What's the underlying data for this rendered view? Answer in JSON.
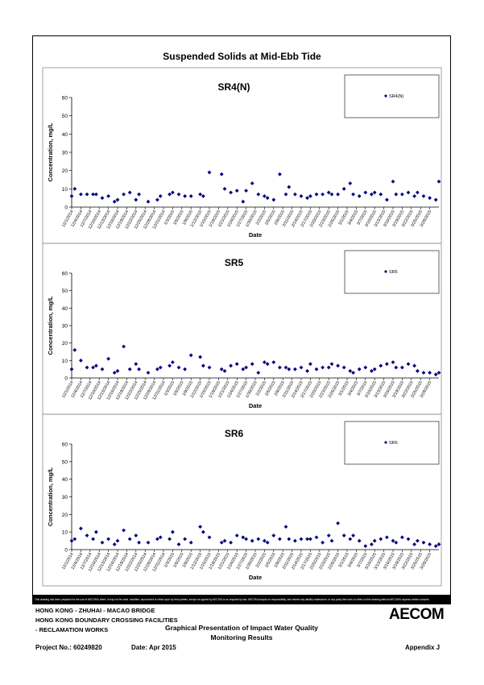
{
  "header": {
    "title": "Suspended Solids at Mid-Ebb Tide"
  },
  "chart_data": [
    {
      "type": "scatter",
      "title": "SR4(N)",
      "xlabel": "Date",
      "ylabel": "Concentration, mg/L",
      "ylim": [
        0,
        60
      ],
      "yticks": [
        0,
        10,
        20,
        30,
        40,
        50,
        60
      ],
      "legend": "top-right",
      "color": "#000080",
      "series": [
        {
          "name": "SR4(N)",
          "x": [
            "12/1/2014",
            "12/2/2014",
            "12/4/2014",
            "12/6/2014",
            "12/8/2014",
            "12/9/2014",
            "12/11/2014",
            "12/13/2014",
            "12/15/2014",
            "12/16/2014",
            "12/18/2014",
            "12/20/2014",
            "12/22/2014",
            "12/23/2014",
            "12/26/2014",
            "12/29/2014",
            "12/30/2014",
            "1/2/2015",
            "1/3/2015",
            "1/5/2015",
            "1/7/2015",
            "1/9/2015",
            "1/12/2015",
            "1/13/2015",
            "1/15/2015",
            "1/19/2015",
            "1/20/2015",
            "1/22/2015",
            "1/24/2015",
            "1/26/2015",
            "1/27/2015",
            "1/29/2015",
            "1/31/2015",
            "2/2/2015",
            "2/3/2015",
            "2/5/2015",
            "2/7/2015",
            "2/9/2015",
            "2/10/2015",
            "2/12/2015",
            "2/14/2015",
            "2/16/2015",
            "2/17/2015",
            "2/19/2015",
            "2/21/2015",
            "2/23/2015",
            "2/24/2015",
            "2/26/2015",
            "2/28/2015",
            "3/2/2015",
            "3/3/2015",
            "3/5/2015",
            "3/7/2015",
            "3/9/2015",
            "3/10/2015",
            "3/12/2015",
            "3/14/2015",
            "3/16/2015",
            "3/17/2015",
            "3/19/2015",
            "3/21/2015",
            "3/23/2015",
            "3/24/2015",
            "3/26/2015",
            "3/28/2015",
            "3/30/2015",
            "3/31/2015"
          ],
          "values": [
            6,
            10,
            7,
            7,
            7,
            7,
            5,
            6,
            3,
            4,
            7,
            8,
            4,
            7,
            3,
            4,
            6,
            7,
            8,
            7,
            6,
            6,
            7,
            6,
            19,
            18,
            10,
            8,
            9,
            3,
            9,
            13,
            7,
            6,
            5,
            4,
            18,
            7,
            11,
            7,
            6,
            5,
            6,
            7,
            7,
            8,
            7,
            7,
            10,
            13,
            7,
            6,
            8,
            7,
            8,
            7,
            4,
            14,
            7,
            7,
            8,
            6,
            8,
            6,
            5,
            4,
            14
          ]
        }
      ],
      "xticks": [
        "12/1/2014",
        "12/4/2014",
        "12/7/2014",
        "12/10/2014",
        "12/13/2014",
        "12/16/2014",
        "12/19/2014",
        "12/22/2014",
        "12/25/2014",
        "12/28/2014",
        "12/31/2014",
        "1/3/2015",
        "1/6/2015",
        "1/9/2015",
        "1/12/2015",
        "1/15/2015",
        "1/18/2015",
        "1/21/2015",
        "1/24/2015",
        "1/27/2015",
        "1/30/2015",
        "2/2/2015",
        "2/5/2015",
        "2/8/2015",
        "2/11/2015",
        "2/14/2015",
        "2/17/2015",
        "2/20/2015",
        "2/23/2015",
        "2/26/2015",
        "3/1/2015",
        "3/4/2015",
        "3/7/2015",
        "3/10/2015",
        "3/13/2015",
        "3/16/2015",
        "3/19/2015",
        "3/22/2015",
        "3/25/2015",
        "3/28/2015"
      ]
    },
    {
      "type": "scatter",
      "title": "SR5",
      "xlabel": "Date",
      "ylabel": "Concentration, mg/L",
      "ylim": [
        0,
        60
      ],
      "yticks": [
        0,
        10,
        20,
        30,
        40,
        50,
        60
      ],
      "legend": "top-right",
      "color": "#000080",
      "series": [
        {
          "name": "SR5",
          "x": [
            "12/1/2014",
            "12/2/2014",
            "12/4/2014",
            "12/6/2014",
            "12/8/2014",
            "12/9/2014",
            "12/11/2014",
            "12/13/2014",
            "12/15/2014",
            "12/16/2014",
            "12/18/2014",
            "12/20/2014",
            "12/22/2014",
            "12/23/2014",
            "12/26/2014",
            "12/29/2014",
            "12/30/2014",
            "1/2/2015",
            "1/3/2015",
            "1/5/2015",
            "1/7/2015",
            "1/9/2015",
            "1/12/2015",
            "1/13/2015",
            "1/15/2015",
            "1/19/2015",
            "1/20/2015",
            "1/22/2015",
            "1/24/2015",
            "1/26/2015",
            "1/27/2015",
            "1/29/2015",
            "1/31/2015",
            "2/2/2015",
            "2/3/2015",
            "2/5/2015",
            "2/7/2015",
            "2/9/2015",
            "2/10/2015",
            "2/12/2015",
            "2/14/2015",
            "2/16/2015",
            "2/17/2015",
            "2/19/2015",
            "2/21/2015",
            "2/23/2015",
            "2/24/2015",
            "2/26/2015",
            "2/28/2015",
            "3/2/2015",
            "3/3/2015",
            "3/5/2015",
            "3/7/2015",
            "3/9/2015",
            "3/10/2015",
            "3/12/2015",
            "3/14/2015",
            "3/16/2015",
            "3/17/2015",
            "3/19/2015",
            "3/21/2015",
            "3/23/2015",
            "3/24/2015",
            "3/26/2015",
            "3/28/2015",
            "3/30/2015",
            "3/31/2015"
          ],
          "values": [
            5,
            16,
            10,
            6,
            6,
            7,
            5,
            11,
            3,
            4,
            18,
            5,
            8,
            5,
            3,
            5,
            6,
            7,
            9,
            6,
            5,
            13,
            12,
            7,
            6,
            5,
            4,
            7,
            8,
            5,
            6,
            8,
            3,
            9,
            8,
            9,
            6,
            6,
            5,
            5,
            6,
            4,
            8,
            5,
            6,
            6,
            8,
            7,
            6,
            4,
            3,
            5,
            6,
            4,
            5,
            7,
            8,
            9,
            6,
            6,
            8,
            7,
            4,
            3,
            3,
            2,
            3
          ]
        }
      ],
      "xticks": [
        "12/1/2014",
        "12/4/2014",
        "12/7/2014",
        "12/10/2014",
        "12/13/2014",
        "12/16/2014",
        "12/19/2014",
        "12/22/2014",
        "12/25/2014",
        "12/28/2014",
        "12/31/2014",
        "1/3/2015",
        "1/6/2015",
        "1/9/2015",
        "1/12/2015",
        "1/15/2015",
        "1/18/2015",
        "1/21/2015",
        "1/24/2015",
        "1/27/2015",
        "1/30/2015",
        "2/2/2015",
        "2/5/2015",
        "2/8/2015",
        "2/11/2015",
        "2/14/2015",
        "2/17/2015",
        "2/20/2015",
        "2/23/2015",
        "2/26/2015",
        "3/1/2015",
        "3/4/2015",
        "3/7/2015",
        "3/10/2015",
        "3/13/2015",
        "3/16/2015",
        "3/19/2015",
        "3/22/2015",
        "3/25/2015",
        "3/28/2015"
      ]
    },
    {
      "type": "scatter",
      "title": "SR6",
      "xlabel": "Date",
      "ylabel": "Concentration, mg/L",
      "ylim": [
        0,
        60
      ],
      "yticks": [
        0,
        10,
        20,
        30,
        40,
        50,
        60
      ],
      "legend": "top-right",
      "color": "#000080",
      "series": [
        {
          "name": "SR6",
          "x": [
            "12/1/2014",
            "12/2/2014",
            "12/4/2014",
            "12/6/2014",
            "12/8/2014",
            "12/9/2014",
            "12/11/2014",
            "12/13/2014",
            "12/15/2014",
            "12/16/2014",
            "12/18/2014",
            "12/20/2014",
            "12/22/2014",
            "12/23/2014",
            "12/26/2014",
            "12/29/2014",
            "12/30/2014",
            "1/2/2015",
            "1/3/2015",
            "1/5/2015",
            "1/7/2015",
            "1/9/2015",
            "1/12/2015",
            "1/13/2015",
            "1/15/2015",
            "1/19/2015",
            "1/20/2015",
            "1/22/2015",
            "1/24/2015",
            "1/26/2015",
            "1/27/2015",
            "1/29/2015",
            "1/31/2015",
            "2/2/2015",
            "2/3/2015",
            "2/5/2015",
            "2/7/2015",
            "2/9/2015",
            "2/10/2015",
            "2/12/2015",
            "2/14/2015",
            "2/16/2015",
            "2/17/2015",
            "2/19/2015",
            "2/21/2015",
            "2/23/2015",
            "2/24/2015",
            "2/26/2015",
            "2/28/2015",
            "3/2/2015",
            "3/3/2015",
            "3/5/2015",
            "3/7/2015",
            "3/9/2015",
            "3/10/2015",
            "3/12/2015",
            "3/14/2015",
            "3/16/2015",
            "3/17/2015",
            "3/19/2015",
            "3/21/2015",
            "3/23/2015",
            "3/24/2015",
            "3/26/2015",
            "3/28/2015",
            "3/30/2015",
            "3/31/2015"
          ],
          "values": [
            5,
            6,
            12,
            8,
            6,
            10,
            4,
            6,
            3,
            5,
            11,
            6,
            8,
            4,
            4,
            6,
            7,
            6,
            10,
            3,
            6,
            4,
            13,
            10,
            7,
            4,
            5,
            4,
            8,
            7,
            6,
            5,
            6,
            5,
            4,
            8,
            6,
            13,
            6,
            5,
            6,
            6,
            6,
            7,
            4,
            8,
            5,
            15,
            8,
            6,
            8,
            5,
            2,
            3,
            5,
            6,
            7,
            5,
            4,
            7,
            6,
            3,
            5,
            4,
            3,
            2,
            3
          ]
        }
      ],
      "xticks": [
        "12/1/2014",
        "12/4/2014",
        "12/7/2014",
        "12/10/2014",
        "12/13/2014",
        "12/16/2014",
        "12/19/2014",
        "12/22/2014",
        "12/25/2014",
        "12/28/2014",
        "12/31/2014",
        "1/3/2015",
        "1/6/2015",
        "1/9/2015",
        "1/12/2015",
        "1/15/2015",
        "1/18/2015",
        "1/21/2015",
        "1/24/2015",
        "1/27/2015",
        "1/30/2015",
        "2/2/2015",
        "2/5/2015",
        "2/8/2015",
        "2/11/2015",
        "2/14/2015",
        "2/17/2015",
        "2/20/2015",
        "2/23/2015",
        "2/26/2015",
        "3/1/2015",
        "3/4/2015",
        "3/7/2015",
        "3/10/2015",
        "3/13/2015",
        "3/16/2015",
        "3/19/2015",
        "3/22/2015",
        "3/25/2015",
        "3/28/2015"
      ]
    }
  ],
  "footer": {
    "disclaimer": "This drawing has been prepared for the use of AECOM's client. It may not be used, modified, reproduced or relied upon by third parties, except as agreed by AECOM or as required by law. AECOM accepts no responsibility, and denies any liability whatsoever, to any party that uses or relies on this drawing without AECOM's express written consent.",
    "project_line1": "HONG KONG - ZHUHAI - MACAO BRIDGE",
    "project_line2": "HONG KONG BOUNDARY CROSSING FACILITIES",
    "project_line3": "- RECLAMATION WORKS",
    "doc_title_line1": "Graphical Presentation of Impact Water Quality",
    "doc_title_line2": "Monitoring Results",
    "logo": "AECOM",
    "project_no": "Project No.: 60249820",
    "date": "Date: Apr 2015",
    "appendix": "Appendix J"
  }
}
